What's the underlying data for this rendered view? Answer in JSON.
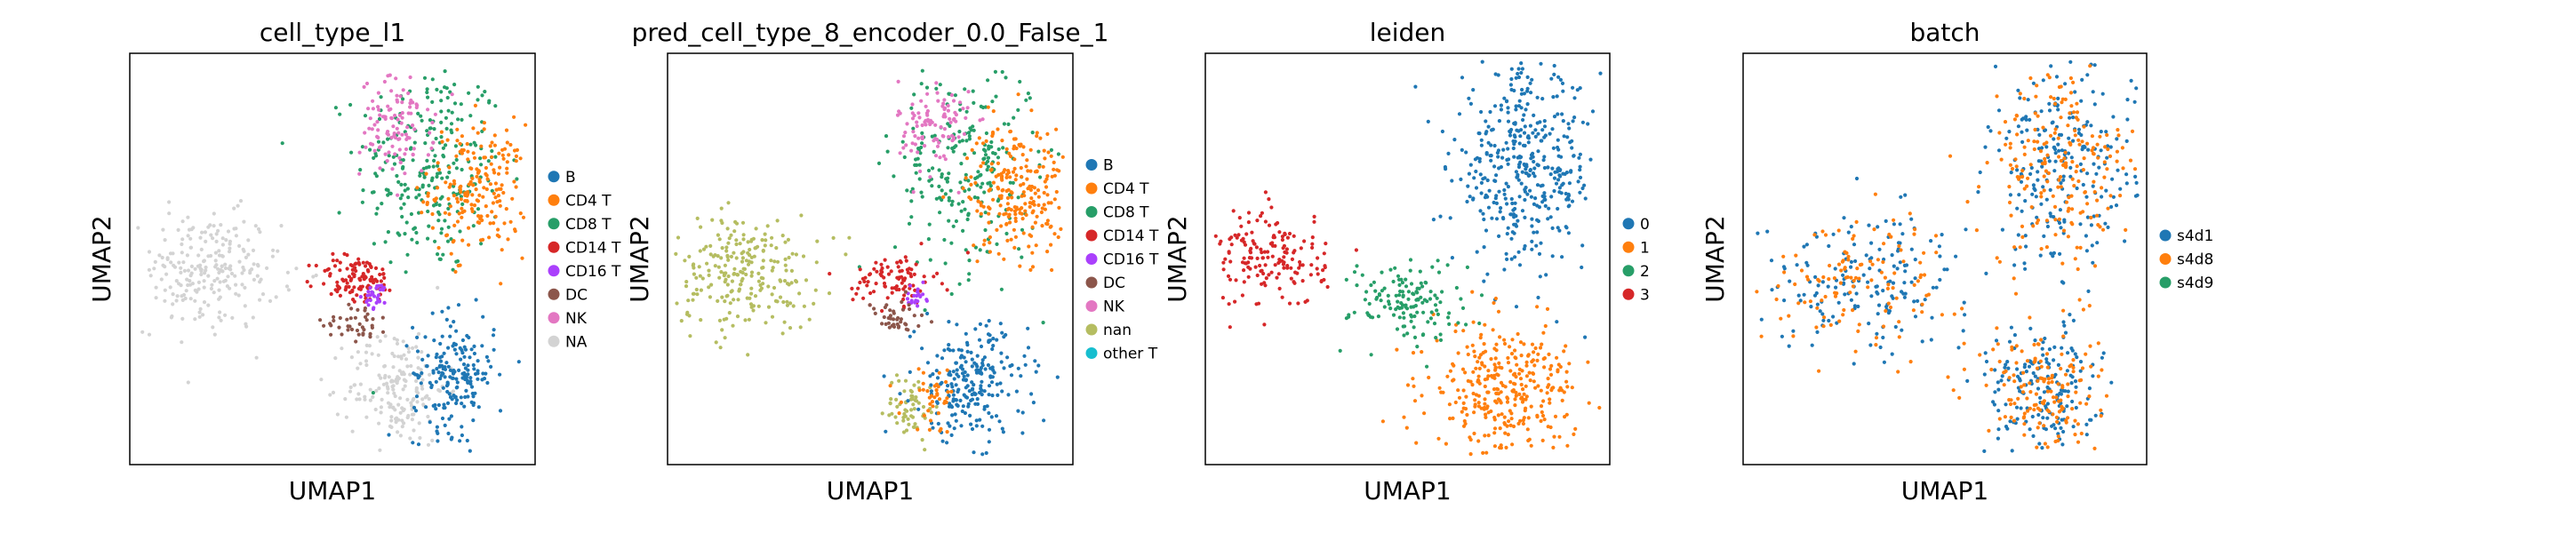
{
  "chart_data": [
    {
      "type": "scatter",
      "title": "cell_type_l1",
      "xlabel": "UMAP1",
      "ylabel": "UMAP2",
      "grid": false,
      "legend_placement": "right",
      "legend": [
        {
          "label": "B",
          "color": "#1f77b4"
        },
        {
          "label": "CD4 T",
          "color": "#ff7f0e"
        },
        {
          "label": "CD8 T",
          "color": "#279e68"
        },
        {
          "label": "CD14 T",
          "color": "#d62728"
        },
        {
          "label": "CD16 T",
          "color": "#aa40fc"
        },
        {
          "label": "DC",
          "color": "#8c564b"
        },
        {
          "label": "NK",
          "color": "#e377c2"
        },
        {
          "label": "NA",
          "color": "#d3d3d3"
        }
      ],
      "clusters": [
        {
          "group": "CD8 T",
          "x": 0.74,
          "y": 0.72,
          "sx": 0.09,
          "sy": 0.13,
          "n": 260
        },
        {
          "group": "CD4 T",
          "x": 0.86,
          "y": 0.67,
          "sx": 0.06,
          "sy": 0.08,
          "n": 200
        },
        {
          "group": "NK",
          "x": 0.66,
          "y": 0.82,
          "sx": 0.045,
          "sy": 0.06,
          "n": 110
        },
        {
          "group": "NA",
          "x": 0.19,
          "y": 0.47,
          "sx": 0.09,
          "sy": 0.07,
          "n": 240
        },
        {
          "group": "NA",
          "x": 0.66,
          "y": 0.19,
          "sx": 0.06,
          "sy": 0.07,
          "n": 180
        },
        {
          "group": "CD14 T",
          "x": 0.56,
          "y": 0.45,
          "sx": 0.05,
          "sy": 0.03,
          "n": 110
        },
        {
          "group": "CD16 T",
          "x": 0.61,
          "y": 0.41,
          "sx": 0.015,
          "sy": 0.015,
          "n": 30
        },
        {
          "group": "DC",
          "x": 0.56,
          "y": 0.35,
          "sx": 0.04,
          "sy": 0.025,
          "n": 40
        },
        {
          "group": "B",
          "x": 0.8,
          "y": 0.22,
          "sx": 0.05,
          "sy": 0.07,
          "n": 190
        }
      ]
    },
    {
      "type": "scatter",
      "title": "pred_cell_type_8_encoder_0.0_False_1",
      "xlabel": "UMAP1",
      "ylabel": "UMAP2",
      "grid": false,
      "legend_placement": "right",
      "legend": [
        {
          "label": "B",
          "color": "#1f77b4"
        },
        {
          "label": "CD4 T",
          "color": "#ff7f0e"
        },
        {
          "label": "CD8 T",
          "color": "#279e68"
        },
        {
          "label": "CD14 T",
          "color": "#d62728"
        },
        {
          "label": "CD16 T",
          "color": "#aa40fc"
        },
        {
          "label": "DC",
          "color": "#8c564b"
        },
        {
          "label": "NK",
          "color": "#e377c2"
        },
        {
          "label": "nan",
          "color": "#b5bd61"
        },
        {
          "label": "other T",
          "color": "#17becf"
        }
      ],
      "clusters": [
        {
          "group": "CD8 T",
          "x": 0.74,
          "y": 0.72,
          "sx": 0.09,
          "sy": 0.13,
          "n": 240
        },
        {
          "group": "CD4 T",
          "x": 0.86,
          "y": 0.67,
          "sx": 0.06,
          "sy": 0.08,
          "n": 230
        },
        {
          "group": "NK",
          "x": 0.66,
          "y": 0.82,
          "sx": 0.045,
          "sy": 0.06,
          "n": 100
        },
        {
          "group": "nan",
          "x": 0.19,
          "y": 0.47,
          "sx": 0.09,
          "sy": 0.07,
          "n": 240
        },
        {
          "group": "nan",
          "x": 0.6,
          "y": 0.14,
          "sx": 0.03,
          "sy": 0.04,
          "n": 60
        },
        {
          "group": "CD14 T",
          "x": 0.56,
          "y": 0.45,
          "sx": 0.05,
          "sy": 0.03,
          "n": 90
        },
        {
          "group": "CD16 T",
          "x": 0.61,
          "y": 0.41,
          "sx": 0.015,
          "sy": 0.015,
          "n": 20
        },
        {
          "group": "DC",
          "x": 0.56,
          "y": 0.35,
          "sx": 0.04,
          "sy": 0.025,
          "n": 40
        },
        {
          "group": "B",
          "x": 0.75,
          "y": 0.2,
          "sx": 0.07,
          "sy": 0.07,
          "n": 230
        },
        {
          "group": "CD4 T",
          "x": 0.66,
          "y": 0.16,
          "sx": 0.04,
          "sy": 0.04,
          "n": 40
        }
      ]
    },
    {
      "type": "scatter",
      "title": "leiden",
      "xlabel": "UMAP1",
      "ylabel": "UMAP2",
      "grid": false,
      "legend_placement": "right",
      "legend": [
        {
          "label": "0",
          "color": "#1f77b4"
        },
        {
          "label": "1",
          "color": "#ff7f0e"
        },
        {
          "label": "2",
          "color": "#279e68"
        },
        {
          "label": "3",
          "color": "#d62728"
        }
      ],
      "clusters": [
        {
          "group": "0",
          "x": 0.79,
          "y": 0.72,
          "sx": 0.09,
          "sy": 0.12,
          "n": 420
        },
        {
          "group": "1",
          "x": 0.74,
          "y": 0.18,
          "sx": 0.09,
          "sy": 0.08,
          "n": 340
        },
        {
          "group": "2",
          "x": 0.5,
          "y": 0.4,
          "sx": 0.07,
          "sy": 0.05,
          "n": 140
        },
        {
          "group": "3",
          "x": 0.16,
          "y": 0.5,
          "sx": 0.07,
          "sy": 0.06,
          "n": 170
        }
      ]
    },
    {
      "type": "scatter",
      "title": "batch",
      "xlabel": "UMAP1",
      "ylabel": "UMAP2",
      "grid": false,
      "legend_placement": "right",
      "legend": [
        {
          "label": "s4d1",
          "color": "#1f77b4"
        },
        {
          "label": "s4d8",
          "color": "#ff7f0e"
        },
        {
          "label": "s4d9",
          "color": "#279e68"
        }
      ],
      "clusters": [
        {
          "group": "s4d1",
          "x": 0.79,
          "y": 0.72,
          "sx": 0.09,
          "sy": 0.12,
          "n": 230
        },
        {
          "group": "s4d8",
          "x": 0.79,
          "y": 0.72,
          "sx": 0.09,
          "sy": 0.12,
          "n": 200
        },
        {
          "group": "s4d1",
          "x": 0.3,
          "y": 0.45,
          "sx": 0.13,
          "sy": 0.08,
          "n": 170
        },
        {
          "group": "s4d8",
          "x": 0.3,
          "y": 0.45,
          "sx": 0.13,
          "sy": 0.08,
          "n": 130
        },
        {
          "group": "s4d1",
          "x": 0.74,
          "y": 0.18,
          "sx": 0.07,
          "sy": 0.08,
          "n": 180
        },
        {
          "group": "s4d8",
          "x": 0.74,
          "y": 0.18,
          "sx": 0.07,
          "sy": 0.08,
          "n": 150
        }
      ]
    }
  ]
}
